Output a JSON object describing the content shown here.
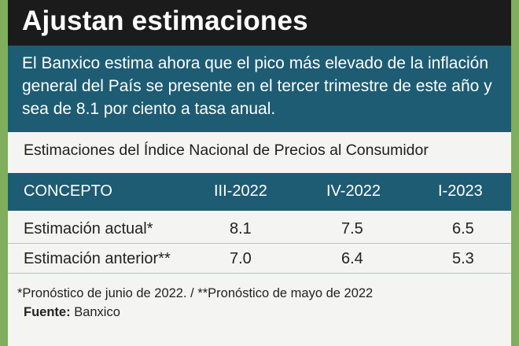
{
  "header": {
    "title": "Ajustan estimaciones"
  },
  "intro": {
    "text": "El Banxico estima ahora que el pico más elevado de la inflación general del País se presente en el tercer trimestre de este año y sea de 8.1 por ciento a tasa anual."
  },
  "subtitle": "Estimaciones del Índice Nacional de Precios al Consumidor",
  "table": {
    "headers": [
      "CONCEPTO",
      "III-2022",
      "IV-2022",
      "I-2023"
    ],
    "rows": [
      [
        "Estimación actual*",
        "8.1",
        "7.5",
        "6.5"
      ],
      [
        "Estimación anterior**",
        "7.0",
        "6.4",
        "5.3"
      ]
    ]
  },
  "notes": "*Pronóstico de junio de 2022. / **Pronóstico de mayo de 2022",
  "source": {
    "label": "Fuente:",
    "value": "Banxico"
  },
  "colors": {
    "header_bg": "#1b1b1b",
    "teal": "#1d5c73",
    "green_border": "#7fae5c"
  }
}
